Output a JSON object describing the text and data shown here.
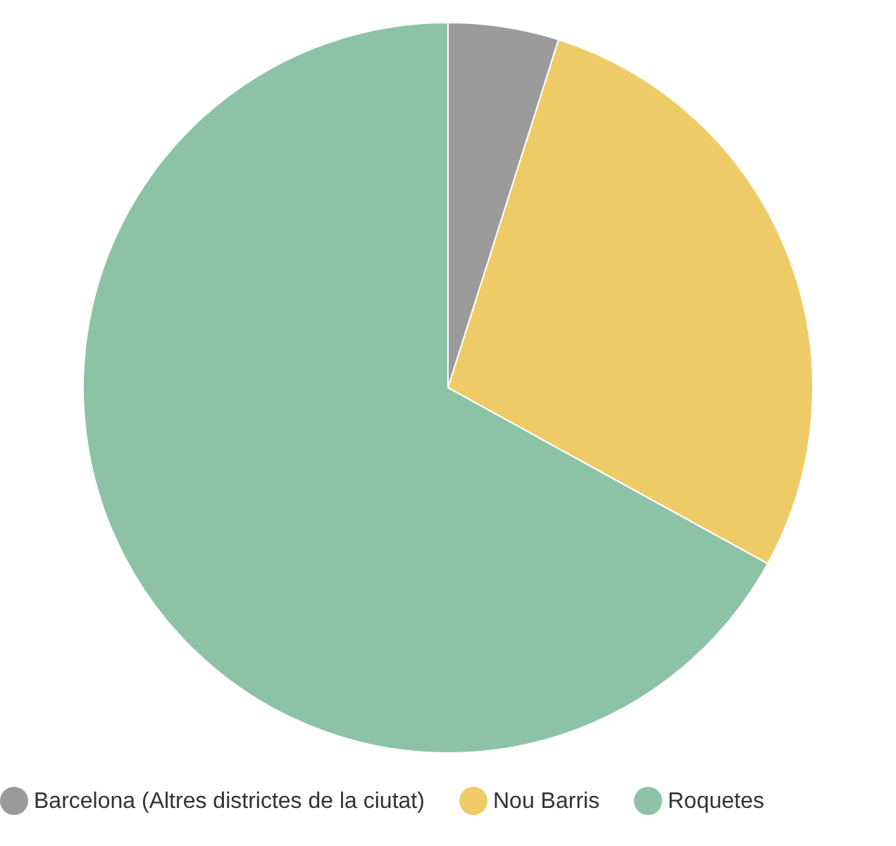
{
  "chart_data": {
    "type": "pie",
    "categories": [
      "Barcelona (Altres districtes de la ciutat)",
      "Nou Barris",
      "Roquetes"
    ],
    "values": [
      4.9,
      28.1,
      67.0
    ],
    "colors": [
      "#9b9b9b",
      "#efcb68",
      "#8cc3a6"
    ],
    "legend": "bottom"
  }
}
